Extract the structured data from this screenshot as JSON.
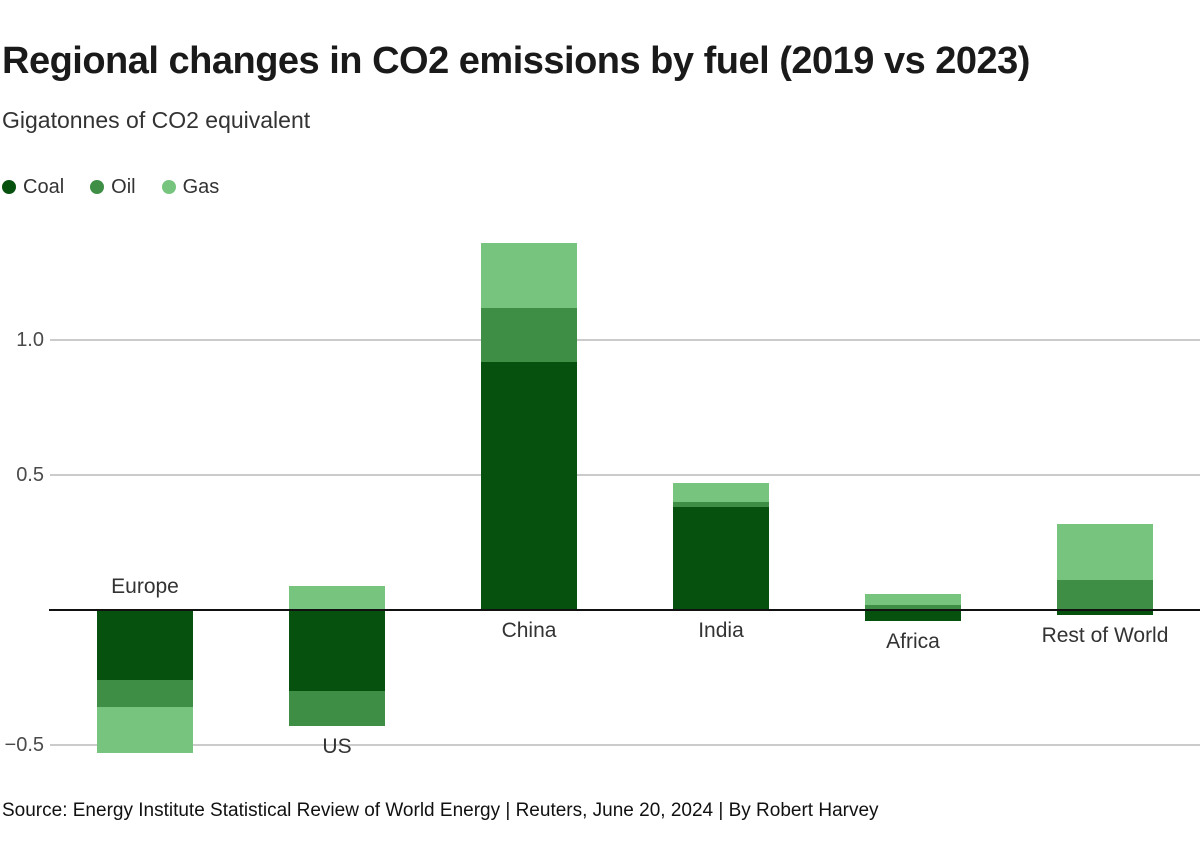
{
  "header": {
    "title": "Regional changes in CO2 emissions by fuel (2019 vs 2023)",
    "subtitle": "Gigatonnes of CO2 equivalent"
  },
  "footer": {
    "source_line": "Source: Energy Institute Statistical Review of World Energy | Reuters, June 20, 2024 | By Robert Harvey"
  },
  "colors": {
    "coal": "#07510f",
    "oil": "#3e8e46",
    "gas": "#76c47d",
    "baseline": "#111111",
    "gridline": "#cbcbcb",
    "title_text": "#1a1a1a",
    "body_text": "#333333"
  },
  "chart_data": {
    "type": "bar",
    "stacked": true,
    "title": "Regional changes in CO2 emissions by fuel (2019 vs 2023)",
    "subtitle": "Gigatonnes of CO2 equivalent",
    "unit": "Gigatonnes of CO2 equivalent",
    "categories": [
      "Europe",
      "US",
      "China",
      "India",
      "Africa",
      "Rest of World"
    ],
    "series": [
      {
        "name": "Coal",
        "color": "#07510f",
        "values": [
          -0.26,
          -0.3,
          0.92,
          0.38,
          -0.04,
          -0.02
        ]
      },
      {
        "name": "Oil",
        "color": "#3e8e46",
        "values": [
          -0.1,
          -0.13,
          0.2,
          0.02,
          0.02,
          0.11
        ]
      },
      {
        "name": "Gas",
        "color": "#76c47d",
        "values": [
          -0.17,
          0.09,
          0.24,
          0.07,
          0.04,
          0.21
        ]
      }
    ],
    "y_ticks": [
      {
        "value": 1.0,
        "label": "1.0"
      },
      {
        "value": 0.5,
        "label": "0.5"
      },
      {
        "value": -0.5,
        "label": "−0.5"
      }
    ],
    "baseline_value": 0,
    "ylim": [
      -0.6,
      1.45
    ],
    "grid": true,
    "legend_position": "top-left",
    "category_label_side": [
      "above",
      "below",
      "below",
      "below",
      "below",
      "below"
    ]
  }
}
